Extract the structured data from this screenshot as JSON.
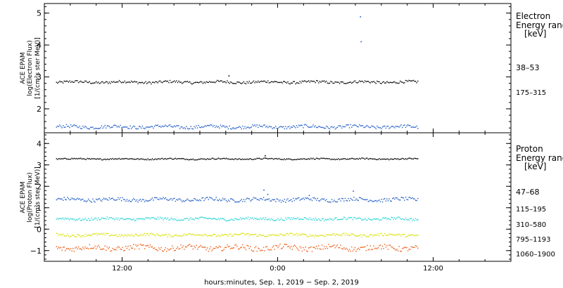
{
  "chart_data": [
    {
      "type": "scatter",
      "panel": "electron",
      "ylabel_lines": [
        "ACE EPAM",
        "log(Electron Flux)",
        "[1/(cm²s ster MeV)]"
      ],
      "yticks": [
        "2",
        "3",
        "4",
        "5"
      ],
      "ylim": [
        1.25,
        5.3
      ],
      "legend_title": [
        "Electron",
        "Energy range",
        "[keV]"
      ],
      "series": [
        {
          "name": "38–53",
          "color": "#000000",
          "mean": 2.85,
          "spread": 0.04
        },
        {
          "name": "175–315",
          "color": "#1e5bc6",
          "mean": 1.45,
          "spread": 0.05
        }
      ],
      "outliers": [
        {
          "x": 30.35,
          "y": 4.9,
          "color": "#1e5bc6"
        },
        {
          "x": 30.4,
          "y": 4.12,
          "color": "#1e5bc6"
        },
        {
          "x": 20.2,
          "y": 3.05,
          "color": "#000000"
        }
      ]
    },
    {
      "type": "scatter",
      "panel": "proton",
      "ylabel_lines": [
        "ACE EPAM",
        "log(Proton Flux)",
        "[1/(cm²s ster MeV)]"
      ],
      "yticks": [
        "−1",
        "0",
        "1",
        "2",
        "3",
        "4"
      ],
      "ylim": [
        -1.5,
        4.5
      ],
      "legend_title": [
        "Proton",
        "Energy range",
        "[keV]"
      ],
      "series": [
        {
          "name": "47–68",
          "color": "#000000",
          "mean": 3.3,
          "spread": 0.03
        },
        {
          "name": "115–195",
          "color": "#1e5bc6",
          "mean": 1.4,
          "spread": 0.08
        },
        {
          "name": "310–580",
          "color": "#22d3d3",
          "mean": 0.5,
          "spread": 0.06
        },
        {
          "name": "795–1193",
          "color": "#d8e000",
          "mean": -0.25,
          "spread": 0.06
        },
        {
          "name": "1060–1900",
          "color": "#ee5a10",
          "mean": -0.85,
          "spread": 0.12
        }
      ],
      "outliers": [
        {
          "x": 22.9,
          "y": 1.85,
          "color": "#1e5bc6"
        },
        {
          "x": 23.2,
          "y": 1.65,
          "color": "#1e5bc6"
        },
        {
          "x": 29.8,
          "y": 1.8,
          "color": "#1e5bc6"
        },
        {
          "x": 26.4,
          "y": 1.6,
          "color": "#1e5bc6"
        },
        {
          "x": 23.0,
          "y": 3.45,
          "color": "#000000"
        }
      ]
    }
  ],
  "x_axis": {
    "label": "hours:minutes, Sep.  1, 2019 − Sep.  2, 2019",
    "range_hours": [
      6,
      42
    ],
    "data_end_hour": 34.8,
    "ticks": [
      {
        "hour": 12,
        "label": "12:00"
      },
      {
        "hour": 24,
        "label": "0:00"
      },
      {
        "hour": 36,
        "label": "12:00"
      }
    ]
  }
}
